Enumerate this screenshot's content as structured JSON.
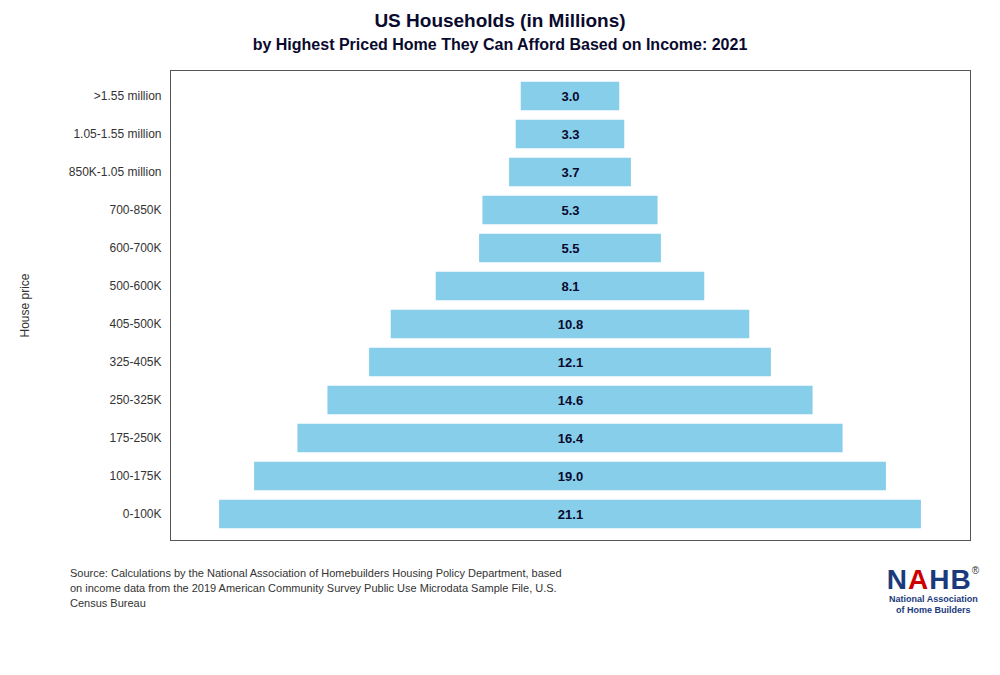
{
  "chart_data": {
    "type": "bar",
    "orientation": "horizontal",
    "title": "US Households (in Millions)",
    "subtitle": "by Highest Priced Home They Can Afford Based on Income: 2021",
    "categories": [
      "0-100K",
      "100-175K",
      "175-250K",
      "250-325K",
      "325-405K",
      "405-500K",
      "500-600K",
      "600-700K",
      "700-850K",
      "850K-1.05 million",
      "1.05-1.55 million",
      ">1.55 million"
    ],
    "values": [
      21.1,
      19.0,
      16.4,
      14.6,
      12.1,
      10.8,
      8.1,
      5.5,
      5.3,
      3.7,
      3.3,
      3.0
    ],
    "value_labels": [
      "21.1",
      "19.0",
      "16.4",
      "14.6",
      "12.1",
      "10.8",
      "8.1",
      "5.5",
      "5.3",
      "3.7",
      "3.3",
      "3.0"
    ],
    "data_labels": true,
    "color": "#87CEEB",
    "ylabel": "House price",
    "xlim": [
      0,
      24
    ],
    "xticks": [],
    "tick_labels": "y",
    "annotations": [
      "Source: Calculations by the National Association of Homebuilders Housing Policy Department, based\non income data from the 2019 American Community Survey Public Use Microdata Sample File, U.S.\nCensus Bureau",
      "NAHB",
      "®",
      "National Association",
      "of Home Builders"
    ]
  }
}
